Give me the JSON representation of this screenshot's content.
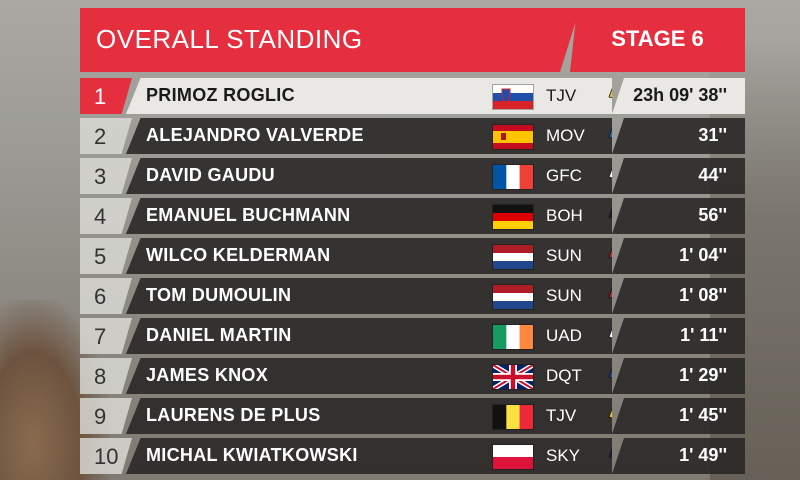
{
  "header": {
    "title": "OVERALL STANDING",
    "stage": "STAGE 6"
  },
  "colors": {
    "accent": "#e52f3e",
    "row_dark": "#282626",
    "row_light": "#e9e8e4"
  },
  "riders": [
    {
      "position": "1",
      "name": "PRIMOZ ROGLIC",
      "flag": "slovenia-flag",
      "team": "TJV",
      "time": "23h 09' 38''",
      "jersey": {
        "main": "#f2c71b",
        "accent": "#222222"
      }
    },
    {
      "position": "2",
      "name": "ALEJANDRO VALVERDE",
      "flag": "spain-flag",
      "team": "MOV",
      "time": "31''",
      "jersey": {
        "main": "#1f6fb5",
        "accent": "#7ec4e8"
      }
    },
    {
      "position": "3",
      "name": "DAVID GAUDU",
      "flag": "france-flag",
      "team": "GFC",
      "time": "44''",
      "jersey": {
        "main": "#ffffff",
        "accent": "#1c3e8c"
      }
    },
    {
      "position": "4",
      "name": "EMANUEL BUCHMANN",
      "flag": "germany-flag",
      "team": "BOH",
      "time": "56''",
      "jersey": {
        "main": "#1e1e1e",
        "accent": "#66d3b8"
      }
    },
    {
      "position": "5",
      "name": "WILCO KELDERMAN",
      "flag": "netherlands-flag",
      "team": "SUN",
      "time": "1' 04''",
      "jersey": {
        "main": "#c9242f",
        "accent": "#ffffff"
      }
    },
    {
      "position": "6",
      "name": "TOM DUMOULIN",
      "flag": "netherlands-flag",
      "team": "SUN",
      "time": "1' 08''",
      "jersey": {
        "main": "#c9242f",
        "accent": "#ffffff"
      }
    },
    {
      "position": "7",
      "name": "DANIEL MARTIN",
      "flag": "ireland-flag",
      "team": "UAD",
      "time": "1' 11''",
      "jersey": {
        "main": "#ffffff",
        "accent": "#d6232b"
      }
    },
    {
      "position": "8",
      "name": "JAMES KNOX",
      "flag": "uk-flag",
      "team": "DQT",
      "time": "1' 29''",
      "jersey": {
        "main": "#1d4f9c",
        "accent": "#ffffff"
      }
    },
    {
      "position": "9",
      "name": "LAURENS DE PLUS",
      "flag": "belgium-flag",
      "team": "TJV",
      "time": "1' 45''",
      "jersey": {
        "main": "#f2c71b",
        "accent": "#222222"
      }
    },
    {
      "position": "10",
      "name": "MICHAL KWIATKOWSKI",
      "flag": "poland-flag",
      "team": "SKY",
      "time": "1' 49''",
      "jersey": {
        "main": "#162447",
        "accent": "#ffffff"
      }
    }
  ]
}
